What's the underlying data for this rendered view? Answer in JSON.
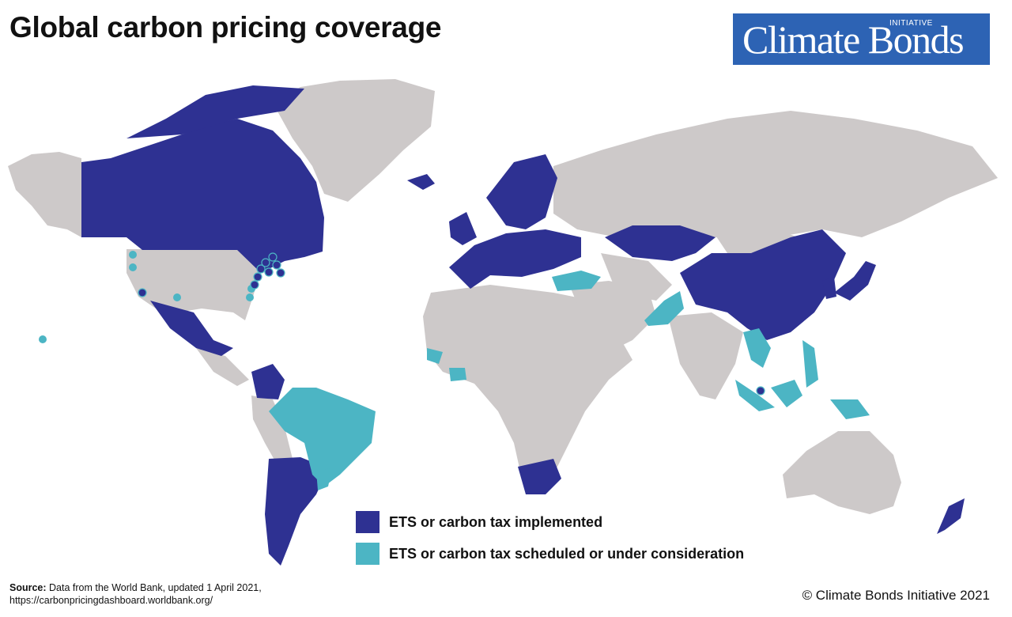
{
  "title": "Global carbon pricing coverage",
  "logo": {
    "word": "Climate Bonds",
    "sub": "INITIATIVE"
  },
  "colors": {
    "implemented": "#2e3192",
    "scheduled": "#4cb5c4",
    "no_pricing": "#cdc9c9",
    "ocean": "#ffffff",
    "logo_bg": "#2d63b4"
  },
  "legend": [
    {
      "key": "implemented",
      "label": "ETS or carbon tax implemented"
    },
    {
      "key": "scheduled",
      "label": "ETS or carbon tax scheduled or under consideration"
    }
  ],
  "source": {
    "label": "Source:",
    "text": "Data from the World Bank, updated 1 April 2021,",
    "url": "https://carbonpricingdashboard.worldbank.org/"
  },
  "copyright": "© Climate Bonds Initiative 2021"
}
